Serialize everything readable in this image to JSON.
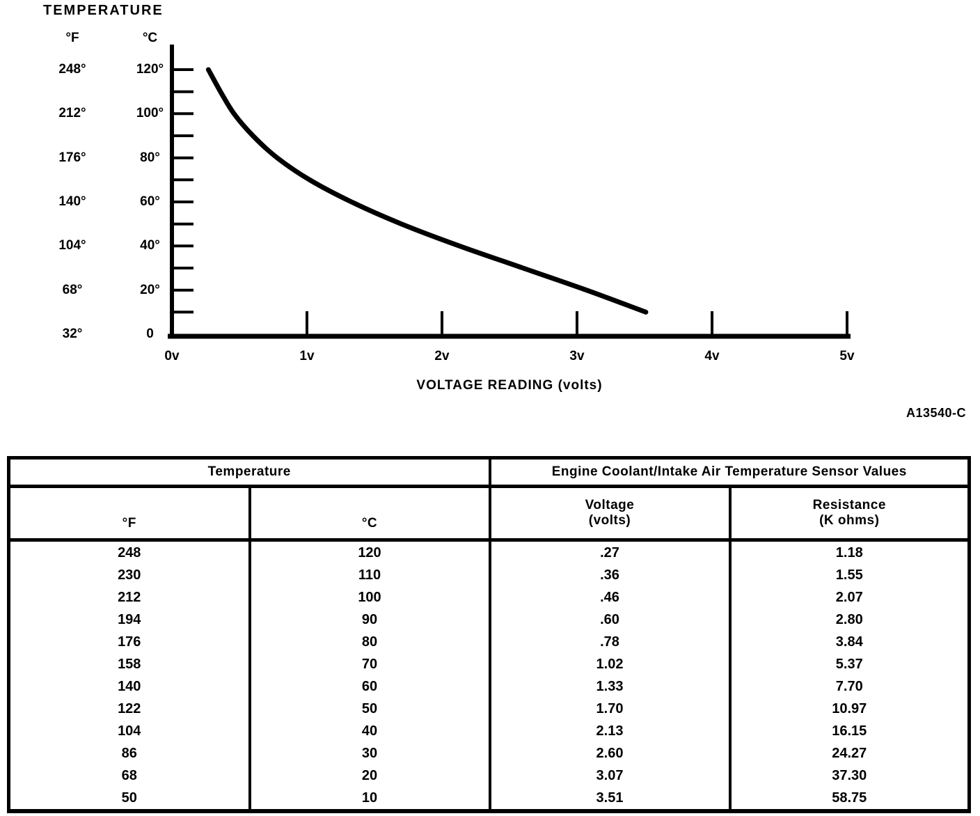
{
  "chart": {
    "title": "TEMPERATURE",
    "figure_ref": "A13540-C",
    "y_axis": {
      "f_unit": "°F",
      "c_unit": "°C",
      "label_rows": [
        {
          "c": 120,
          "f_label": "248°",
          "c_label": "120°"
        },
        {
          "c": 100,
          "f_label": "212°",
          "c_label": "100°"
        },
        {
          "c": 80,
          "f_label": "176°",
          "c_label": "80°"
        },
        {
          "c": 60,
          "f_label": "140°",
          "c_label": "60°"
        },
        {
          "c": 40,
          "f_label": "104°",
          "c_label": "40°"
        },
        {
          "c": 20,
          "f_label": "68°",
          "c_label": "20°"
        },
        {
          "c": 0,
          "f_label": "32°",
          "c_label": "0"
        }
      ],
      "tick_min_c": 10,
      "tick_max_c": 120,
      "tick_step_c": 10
    },
    "x_axis": {
      "title": "VOLTAGE READING (volts)",
      "ticks": [
        {
          "v": 0,
          "label": "0v"
        },
        {
          "v": 1,
          "label": "1v"
        },
        {
          "v": 2,
          "label": "2v"
        },
        {
          "v": 3,
          "label": "3v"
        },
        {
          "v": 4,
          "label": "4v"
        },
        {
          "v": 5,
          "label": "5v"
        }
      ]
    }
  },
  "chart_data": {
    "type": "line",
    "title": "TEMPERATURE",
    "xlabel": "VOLTAGE READING (volts)",
    "ylabel_left_unit": "°F",
    "ylabel_right_unit": "°C",
    "xlim": [
      0,
      5
    ],
    "ylim_c": [
      0,
      120
    ],
    "ylim_f": [
      32,
      248
    ],
    "grid": false,
    "legend": false,
    "series": [
      {
        "name": "engine-coolant-intake-air-temp-sensor",
        "x_volts": [
          0.27,
          0.36,
          0.46,
          0.6,
          0.78,
          1.02,
          1.33,
          1.7,
          2.13,
          2.6,
          3.07,
          3.51
        ],
        "y_c": [
          120,
          110,
          100,
          90,
          80,
          70,
          60,
          50,
          40,
          30,
          20,
          10
        ],
        "y_f": [
          248,
          230,
          212,
          194,
          176,
          158,
          140,
          122,
          104,
          86,
          68,
          50
        ]
      }
    ],
    "figure_ref": "A13540-C"
  },
  "table": {
    "group_headers": [
      {
        "label": "Temperature"
      },
      {
        "label": "Engine Coolant/Intake Air Temperature Sensor Values"
      }
    ],
    "columns": [
      {
        "line1": "°F",
        "line2": ""
      },
      {
        "line1": "°C",
        "line2": ""
      },
      {
        "line1": "Voltage",
        "line2": "(volts)"
      },
      {
        "line1": "Resistance",
        "line2": "(K ohms)"
      }
    ],
    "rows": [
      [
        "248",
        "120",
        ".27",
        "1.18"
      ],
      [
        "230",
        "110",
        ".36",
        "1.55"
      ],
      [
        "212",
        "100",
        ".46",
        "2.07"
      ],
      [
        "194",
        "90",
        ".60",
        "2.80"
      ],
      [
        "176",
        "80",
        ".78",
        "3.84"
      ],
      [
        "158",
        "70",
        "1.02",
        "5.37"
      ],
      [
        "140",
        "60",
        "1.33",
        "7.70"
      ],
      [
        "122",
        "50",
        "1.70",
        "10.97"
      ],
      [
        "104",
        "40",
        "2.13",
        "16.15"
      ],
      [
        "86",
        "30",
        "2.60",
        "24.27"
      ],
      [
        "68",
        "20",
        "3.07",
        "37.30"
      ],
      [
        "50",
        "10",
        "3.51",
        "58.75"
      ]
    ]
  }
}
